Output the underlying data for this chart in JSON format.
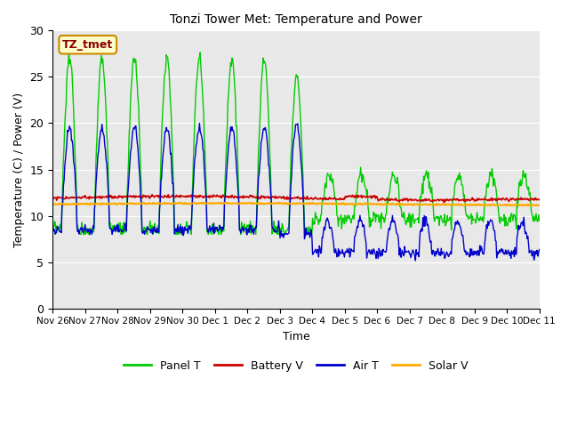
{
  "title": "Tonzi Tower Met: Temperature and Power",
  "ylabel": "Temperature (C) / Power (V)",
  "xlabel": "Time",
  "annotation": "TZ_tmet",
  "ylim": [
    0,
    30
  ],
  "yticks": [
    0,
    5,
    10,
    15,
    20,
    25,
    30
  ],
  "x_labels": [
    "Nov 26",
    "Nov 27",
    "Nov 28",
    "Nov 29",
    "Nov 30",
    "Dec 1",
    "Dec 2",
    "Dec 3",
    "Dec 4",
    "Dec 5",
    "Dec 6",
    "Dec 7",
    "Dec 8",
    "Dec 9",
    "Dec 10",
    "Dec 11"
  ],
  "bg_color": "#e8e8e8",
  "panel_t_color": "#00cc00",
  "battery_v_color": "#cc0000",
  "air_t_color": "#0000cc",
  "solar_v_color": "#ffaa00",
  "legend_labels": [
    "Panel T",
    "Battery V",
    "Air T",
    "Solar V"
  ]
}
